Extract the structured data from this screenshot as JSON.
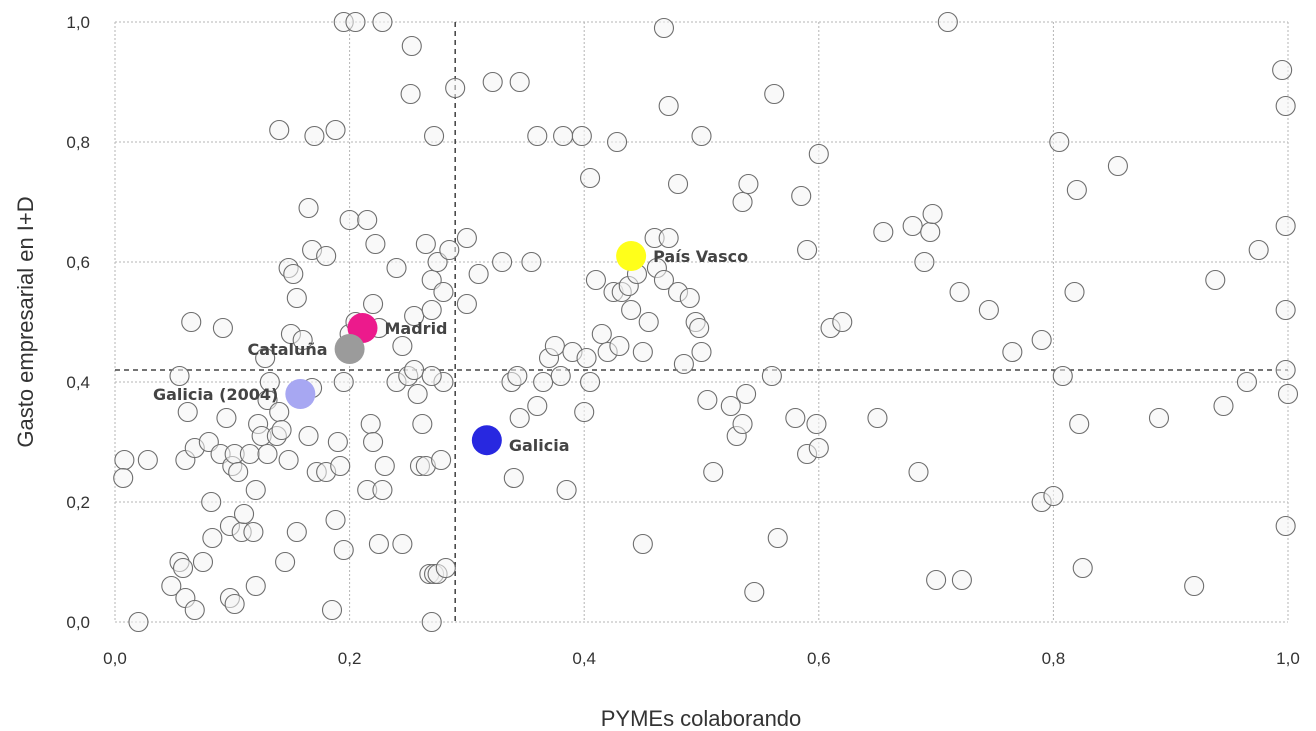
{
  "chart_data": {
    "type": "scatter",
    "title": "",
    "xlabel": "PYMEs colaborando",
    "ylabel": "Gasto empresarial en I+D",
    "xlim": [
      0,
      1
    ],
    "ylim": [
      0,
      1
    ],
    "xticks": [
      "0,0",
      "0,2",
      "0,4",
      "0,6",
      "0,8",
      "1,0"
    ],
    "yticks": [
      "0,0",
      "0,2",
      "0,4",
      "0,6",
      "0,8",
      "1,0"
    ],
    "grid": true,
    "reference_lines": {
      "x": 0.29,
      "y": 0.42
    },
    "highlighted": [
      {
        "label": "País Vasco",
        "x": 0.44,
        "y": 0.61,
        "color": "#ffff1a"
      },
      {
        "label": "Madrid",
        "x": 0.211,
        "y": 0.49,
        "color": "#ec1a8c"
      },
      {
        "label": "Cataluña",
        "x": 0.2,
        "y": 0.455,
        "color": "#9b9b9b"
      },
      {
        "label": "Galicia (2004)",
        "x": 0.158,
        "y": 0.38,
        "color": "#a7a7f2"
      },
      {
        "label": "Galicia",
        "x": 0.317,
        "y": 0.303,
        "color": "#2828e0"
      }
    ],
    "points": [
      [
        0.02,
        0.0
      ],
      [
        0.008,
        0.27
      ],
      [
        0.007,
        0.24
      ],
      [
        0.028,
        0.27
      ],
      [
        0.048,
        0.06
      ],
      [
        0.055,
        0.1
      ],
      [
        0.058,
        0.09
      ],
      [
        0.06,
        0.04
      ],
      [
        0.068,
        0.02
      ],
      [
        0.075,
        0.1
      ],
      [
        0.055,
        0.41
      ],
      [
        0.06,
        0.27
      ],
      [
        0.062,
        0.35
      ],
      [
        0.068,
        0.29
      ],
      [
        0.08,
        0.3
      ],
      [
        0.082,
        0.2
      ],
      [
        0.083,
        0.14
      ],
      [
        0.09,
        0.28
      ],
      [
        0.095,
        0.34
      ],
      [
        0.098,
        0.16
      ],
      [
        0.1,
        0.26
      ],
      [
        0.102,
        0.28
      ],
      [
        0.105,
        0.25
      ],
      [
        0.098,
        0.04
      ],
      [
        0.102,
        0.03
      ],
      [
        0.108,
        0.15
      ],
      [
        0.11,
        0.18
      ],
      [
        0.115,
        0.28
      ],
      [
        0.118,
        0.15
      ],
      [
        0.12,
        0.06
      ],
      [
        0.12,
        0.22
      ],
      [
        0.122,
        0.33
      ],
      [
        0.125,
        0.31
      ],
      [
        0.128,
        0.44
      ],
      [
        0.13,
        0.28
      ],
      [
        0.13,
        0.37
      ],
      [
        0.132,
        0.4
      ],
      [
        0.138,
        0.31
      ],
      [
        0.14,
        0.35
      ],
      [
        0.142,
        0.32
      ],
      [
        0.145,
        0.1
      ],
      [
        0.148,
        0.27
      ],
      [
        0.15,
        0.48
      ],
      [
        0.155,
        0.15
      ],
      [
        0.16,
        0.38
      ],
      [
        0.165,
        0.31
      ],
      [
        0.168,
        0.39
      ],
      [
        0.172,
        0.25
      ],
      [
        0.18,
        0.25
      ],
      [
        0.185,
        0.02
      ],
      [
        0.188,
        0.17
      ],
      [
        0.19,
        0.3
      ],
      [
        0.192,
        0.26
      ],
      [
        0.195,
        0.12
      ],
      [
        0.195,
        0.4
      ],
      [
        0.2,
        0.48
      ],
      [
        0.205,
        0.5
      ],
      [
        0.215,
        0.22
      ],
      [
        0.218,
        0.33
      ],
      [
        0.22,
        0.3
      ],
      [
        0.22,
        0.53
      ],
      [
        0.225,
        0.13
      ],
      [
        0.228,
        0.22
      ],
      [
        0.23,
        0.26
      ],
      [
        0.24,
        0.4
      ],
      [
        0.245,
        0.13
      ],
      [
        0.25,
        0.41
      ],
      [
        0.255,
        0.42
      ],
      [
        0.258,
        0.38
      ],
      [
        0.26,
        0.26
      ],
      [
        0.262,
        0.33
      ],
      [
        0.265,
        0.26
      ],
      [
        0.268,
        0.08
      ],
      [
        0.27,
        0.0
      ],
      [
        0.272,
        0.08
      ],
      [
        0.275,
        0.08
      ],
      [
        0.278,
        0.27
      ],
      [
        0.28,
        0.4
      ],
      [
        0.27,
        0.41
      ],
      [
        0.282,
        0.09
      ],
      [
        0.065,
        0.5
      ],
      [
        0.092,
        0.49
      ],
      [
        0.148,
        0.59
      ],
      [
        0.152,
        0.58
      ],
      [
        0.155,
        0.54
      ],
      [
        0.16,
        0.47
      ],
      [
        0.165,
        0.69
      ],
      [
        0.168,
        0.62
      ],
      [
        0.18,
        0.61
      ],
      [
        0.2,
        0.67
      ],
      [
        0.215,
        0.67
      ],
      [
        0.222,
        0.63
      ],
      [
        0.225,
        0.49
      ],
      [
        0.24,
        0.59
      ],
      [
        0.245,
        0.46
      ],
      [
        0.255,
        0.51
      ],
      [
        0.265,
        0.63
      ],
      [
        0.27,
        0.57
      ],
      [
        0.275,
        0.6
      ],
      [
        0.28,
        0.55
      ],
      [
        0.285,
        0.62
      ],
      [
        0.27,
        0.52
      ],
      [
        0.3,
        0.53
      ],
      [
        0.3,
        0.64
      ],
      [
        0.31,
        0.58
      ],
      [
        0.33,
        0.6
      ],
      [
        0.355,
        0.6
      ],
      [
        0.14,
        0.82
      ],
      [
        0.17,
        0.81
      ],
      [
        0.188,
        0.82
      ],
      [
        0.195,
        1.0
      ],
      [
        0.205,
        1.0
      ],
      [
        0.228,
        1.0
      ],
      [
        0.253,
        0.96
      ],
      [
        0.252,
        0.88
      ],
      [
        0.272,
        0.81
      ],
      [
        0.29,
        0.89
      ],
      [
        0.322,
        0.9
      ],
      [
        0.345,
        0.9
      ],
      [
        0.36,
        0.81
      ],
      [
        0.382,
        0.81
      ],
      [
        0.398,
        0.81
      ],
      [
        0.405,
        0.74
      ],
      [
        0.428,
        0.8
      ],
      [
        0.468,
        0.99
      ],
      [
        0.472,
        0.86
      ],
      [
        0.48,
        0.73
      ],
      [
        0.5,
        0.81
      ],
      [
        0.535,
        0.7
      ],
      [
        0.54,
        0.73
      ],
      [
        0.562,
        0.88
      ],
      [
        0.585,
        0.71
      ],
      [
        0.6,
        0.78
      ],
      [
        0.59,
        0.62
      ],
      [
        0.338,
        0.4
      ],
      [
        0.343,
        0.41
      ],
      [
        0.345,
        0.34
      ],
      [
        0.34,
        0.24
      ],
      [
        0.36,
        0.36
      ],
      [
        0.365,
        0.4
      ],
      [
        0.37,
        0.44
      ],
      [
        0.375,
        0.46
      ],
      [
        0.38,
        0.41
      ],
      [
        0.385,
        0.22
      ],
      [
        0.39,
        0.45
      ],
      [
        0.4,
        0.35
      ],
      [
        0.402,
        0.44
      ],
      [
        0.405,
        0.4
      ],
      [
        0.41,
        0.57
      ],
      [
        0.415,
        0.48
      ],
      [
        0.42,
        0.45
      ],
      [
        0.425,
        0.55
      ],
      [
        0.43,
        0.46
      ],
      [
        0.432,
        0.55
      ],
      [
        0.438,
        0.56
      ],
      [
        0.44,
        0.52
      ],
      [
        0.445,
        0.58
      ],
      [
        0.45,
        0.45
      ],
      [
        0.45,
        0.13
      ],
      [
        0.455,
        0.5
      ],
      [
        0.46,
        0.64
      ],
      [
        0.462,
        0.59
      ],
      [
        0.468,
        0.57
      ],
      [
        0.472,
        0.64
      ],
      [
        0.48,
        0.55
      ],
      [
        0.49,
        0.54
      ],
      [
        0.495,
        0.5
      ],
      [
        0.498,
        0.49
      ],
      [
        0.5,
        0.45
      ],
      [
        0.485,
        0.43
      ],
      [
        0.505,
        0.37
      ],
      [
        0.51,
        0.25
      ],
      [
        0.525,
        0.36
      ],
      [
        0.53,
        0.31
      ],
      [
        0.535,
        0.33
      ],
      [
        0.538,
        0.38
      ],
      [
        0.545,
        0.05
      ],
      [
        0.56,
        0.41
      ],
      [
        0.565,
        0.14
      ],
      [
        0.58,
        0.34
      ],
      [
        0.59,
        0.28
      ],
      [
        0.598,
        0.33
      ],
      [
        0.6,
        0.29
      ],
      [
        0.61,
        0.49
      ],
      [
        0.62,
        0.5
      ],
      [
        0.65,
        0.34
      ],
      [
        0.655,
        0.65
      ],
      [
        0.68,
        0.66
      ],
      [
        0.685,
        0.25
      ],
      [
        0.69,
        0.6
      ],
      [
        0.695,
        0.65
      ],
      [
        0.697,
        0.68
      ],
      [
        0.7,
        0.07
      ],
      [
        0.71,
        1.0
      ],
      [
        0.72,
        0.55
      ],
      [
        0.722,
        0.07
      ],
      [
        0.745,
        0.52
      ],
      [
        0.765,
        0.45
      ],
      [
        0.79,
        0.2
      ],
      [
        0.79,
        0.47
      ],
      [
        0.8,
        0.21
      ],
      [
        0.805,
        0.8
      ],
      [
        0.808,
        0.41
      ],
      [
        0.818,
        0.55
      ],
      [
        0.82,
        0.72
      ],
      [
        0.822,
        0.33
      ],
      [
        0.825,
        0.09
      ],
      [
        0.855,
        0.76
      ],
      [
        0.89,
        0.34
      ],
      [
        0.92,
        0.06
      ],
      [
        0.938,
        0.57
      ],
      [
        0.945,
        0.36
      ],
      [
        0.965,
        0.4
      ],
      [
        0.975,
        0.62
      ],
      [
        0.995,
        0.92
      ],
      [
        0.998,
        0.86
      ],
      [
        0.998,
        0.66
      ],
      [
        0.998,
        0.52
      ],
      [
        0.998,
        0.42
      ],
      [
        1.0,
        0.38
      ],
      [
        0.998,
        0.16
      ]
    ]
  }
}
